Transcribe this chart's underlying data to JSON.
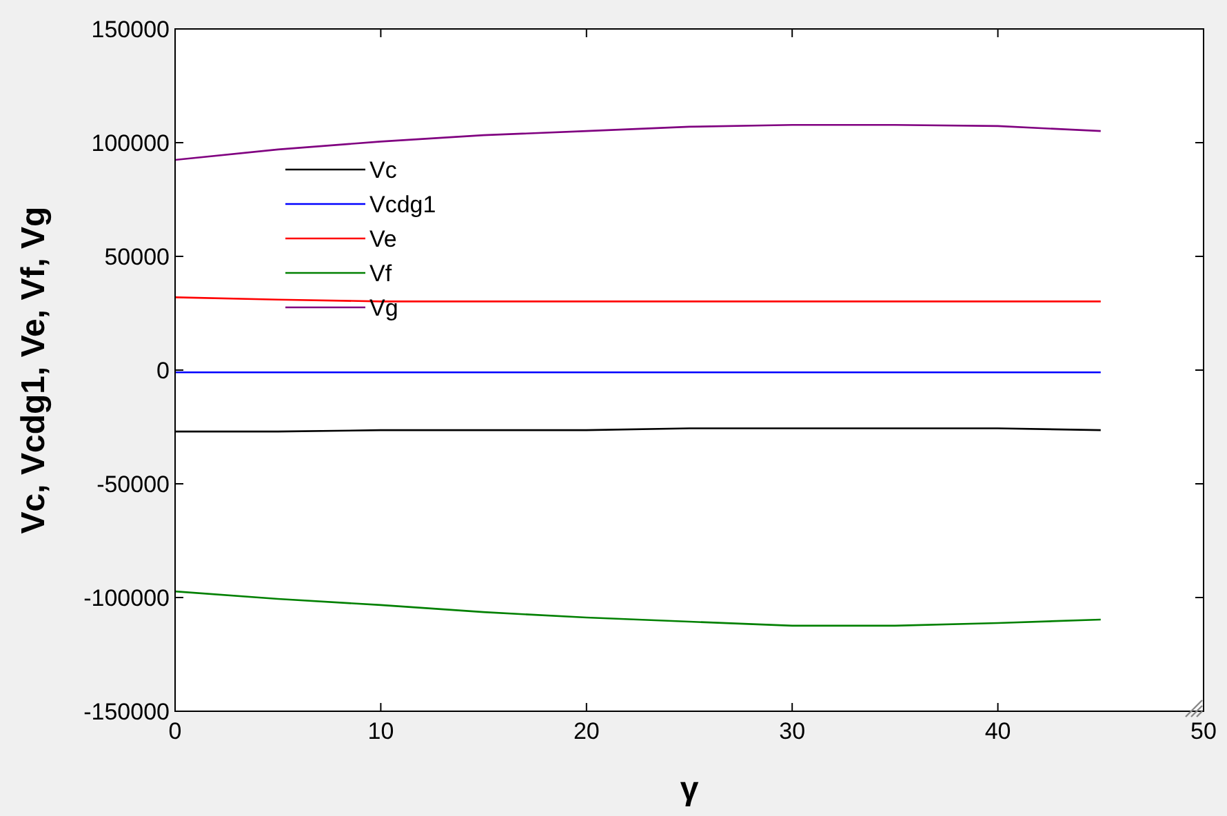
{
  "chart_data": {
    "type": "line",
    "xlabel": "γ",
    "ylabel": "Vc,  Vcdg1,  Ve,  Vf,  Vg",
    "x": [
      0,
      5,
      10,
      15,
      20,
      25,
      30,
      35,
      40,
      45
    ],
    "xlim": [
      0,
      50
    ],
    "xticks": [
      0,
      10,
      20,
      30,
      40,
      50
    ],
    "ylim": [
      -150000,
      150000
    ],
    "yticks": [
      -150000,
      -100000,
      -50000,
      0,
      50000,
      100000,
      150000
    ],
    "grid": false,
    "legend": "top left",
    "line_style": "solid",
    "marker": "none",
    "series": [
      {
        "name": "Vc",
        "color": "#000000",
        "values": [
          -27000,
          -27000,
          -26400,
          -26400,
          -26400,
          -25600,
          -25600,
          -25600,
          -25600,
          -26400
        ]
      },
      {
        "name": "Vcdg1",
        "color": "#0000ff",
        "values": [
          -1000,
          -1000,
          -1000,
          -1000,
          -1000,
          -1000,
          -1000,
          -1000,
          -1000,
          -1000
        ]
      },
      {
        "name": "Ve",
        "color": "#ff0000",
        "values": [
          32000,
          31000,
          30200,
          30200,
          30200,
          30200,
          30200,
          30200,
          30200,
          30200
        ]
      },
      {
        "name": "Vf",
        "color": "#008000",
        "values": [
          -97300,
          -100600,
          -103300,
          -106400,
          -108800,
          -110600,
          -112400,
          -112400,
          -111200,
          -109700
        ]
      },
      {
        "name": "Vg",
        "color": "#800080",
        "values": [
          92400,
          97000,
          100500,
          103300,
          105100,
          107000,
          107800,
          107800,
          107300,
          105100
        ]
      }
    ]
  }
}
